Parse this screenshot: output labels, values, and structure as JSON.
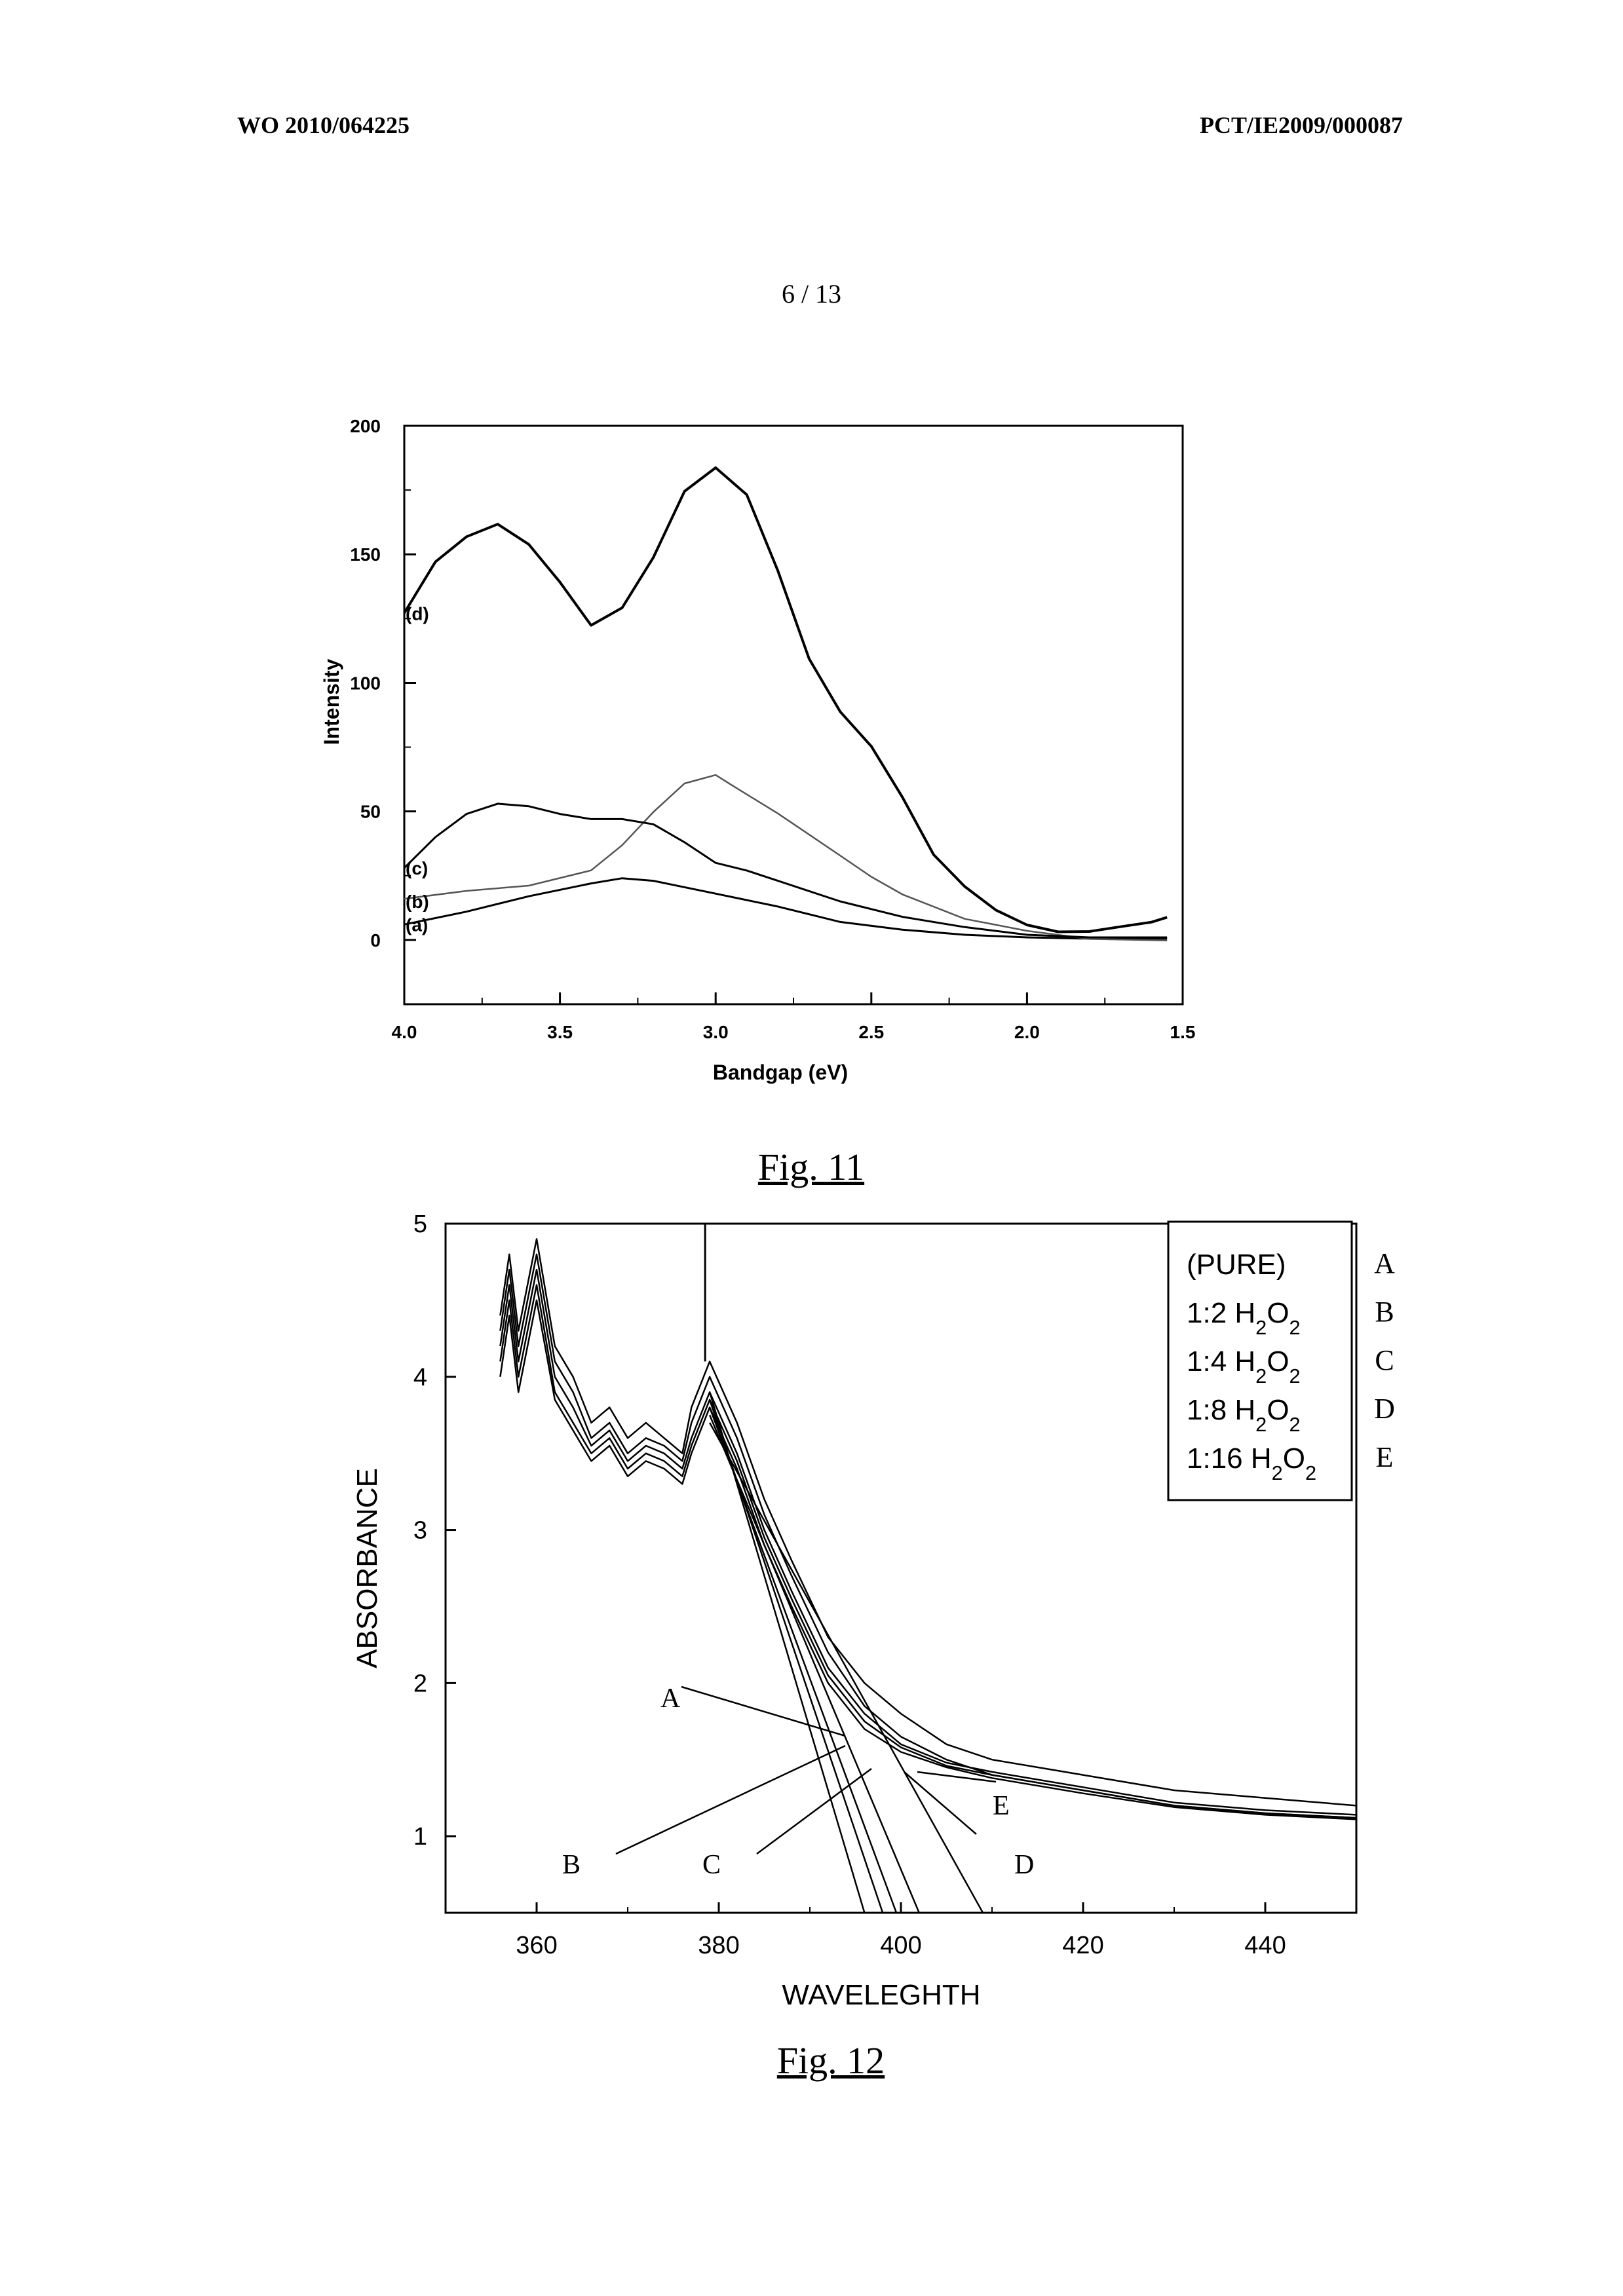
{
  "header": {
    "left": "WO 2010/064225",
    "right": "PCT/IE2009/000087",
    "sheet": "6 / 13"
  },
  "colors": {
    "ink": "#000000",
    "fig11_curve_b": "#555555"
  },
  "figures": [
    {
      "caption": "Fig. 11",
      "xlabel": "Bandgap (eV)",
      "ylabel": "Intensity",
      "xticks": [
        "4.0",
        "3.5",
        "3.0",
        "2.5",
        "2.0",
        "1.5"
      ],
      "yticks": [
        "0",
        "50",
        "100",
        "150",
        "200"
      ],
      "curve_labels": [
        "(a)",
        "(b)",
        "(c)",
        "(d)"
      ]
    },
    {
      "caption": "Fig. 12",
      "xlabel": "WAVELEGHTH",
      "ylabel": "ABSORBANCE",
      "xticks": [
        "360",
        "380",
        "400",
        "420",
        "440"
      ],
      "yticks": [
        "1",
        "2",
        "3",
        "4",
        "5"
      ],
      "legend": [
        "(PURE)",
        "1:2 H2O2",
        "1:4 H2O2",
        "1:8 H2O2",
        "1:16 H2O2"
      ],
      "legend_letters": [
        "A",
        "B",
        "C",
        "D",
        "E"
      ],
      "callouts": [
        "A",
        "B",
        "C",
        "D",
        "E"
      ]
    }
  ],
  "chart_data": [
    {
      "type": "line",
      "title": "",
      "xlabel": "Bandgap (eV)",
      "ylabel": "Intensity",
      "xlim": [
        4.0,
        1.5
      ],
      "ylim": [
        -25,
        200
      ],
      "x_reversed": true,
      "grid": false,
      "series": [
        {
          "name": "(a)",
          "x": [
            4.0,
            3.8,
            3.6,
            3.4,
            3.3,
            3.2,
            3.0,
            2.8,
            2.6,
            2.4,
            2.2,
            2.0,
            1.8,
            1.55
          ],
          "values": [
            6,
            11,
            17,
            22,
            24,
            23,
            18,
            13,
            7,
            4,
            2,
            1,
            0.5,
            0.5
          ]
        },
        {
          "name": "(b)",
          "x": [
            4.0,
            3.8,
            3.6,
            3.4,
            3.3,
            3.2,
            3.1,
            3.0,
            2.95,
            2.8,
            2.6,
            2.5,
            2.4,
            2.2,
            2.0,
            1.8,
            1.55
          ],
          "values": [
            15,
            18,
            21,
            28,
            38,
            50,
            60,
            63,
            60,
            50,
            34,
            25,
            17,
            7,
            3,
            1,
            1
          ]
        },
        {
          "name": "(c)",
          "x": [
            4.0,
            3.9,
            3.8,
            3.7,
            3.6,
            3.5,
            3.4,
            3.3,
            3.2,
            3.1,
            3.0,
            2.9,
            2.8,
            2.6,
            2.4,
            2.2,
            2.0,
            1.8,
            1.55
          ],
          "values": [
            28,
            40,
            49,
            53,
            52,
            49,
            47,
            47,
            45,
            38,
            30,
            27,
            23,
            15,
            9,
            5,
            2,
            1,
            1
          ]
        },
        {
          "name": "(d)",
          "x": [
            4.0,
            3.9,
            3.8,
            3.7,
            3.6,
            3.5,
            3.4,
            3.3,
            3.2,
            3.1,
            3.0,
            2.9,
            2.8,
            2.7,
            2.6,
            2.5,
            2.4,
            2.3,
            2.2,
            2.1,
            2.0,
            1.9,
            1.8,
            1.7,
            1.6,
            1.55
          ],
          "values": [
            127,
            148,
            158,
            162,
            153,
            138,
            122,
            130,
            150,
            175,
            183,
            172,
            143,
            110,
            90,
            76,
            55,
            32,
            20,
            12,
            7,
            4,
            3,
            4,
            6,
            9
          ]
        }
      ]
    },
    {
      "type": "line",
      "title": "",
      "xlabel": "WAVELEGHTH",
      "ylabel": "ABSORBANCE",
      "xlim": [
        350,
        450
      ],
      "ylim": [
        0.5,
        5
      ],
      "grid": false,
      "legend": "top-right",
      "series": [
        {
          "name": "A",
          "x": [
            356,
            357,
            358,
            360,
            362,
            364,
            366,
            368,
            370,
            372,
            374,
            376,
            377,
            379,
            382,
            385,
            388,
            392,
            396,
            400,
            405,
            410,
            420,
            430,
            440,
            450
          ],
          "values": [
            4.4,
            4.8,
            4.3,
            4.9,
            4.2,
            4.0,
            3.7,
            3.8,
            3.6,
            3.7,
            3.6,
            3.5,
            3.8,
            4.1,
            3.7,
            3.2,
            2.8,
            2.3,
            2.0,
            1.8,
            1.6,
            1.5,
            1.4,
            1.3,
            1.25,
            1.2
          ]
        },
        {
          "name": "B",
          "x": [
            356,
            357,
            358,
            360,
            362,
            364,
            366,
            368,
            370,
            372,
            374,
            376,
            377,
            379,
            382,
            385,
            388,
            392,
            396,
            400,
            405,
            410,
            420,
            430,
            440,
            450
          ],
          "values": [
            4.3,
            4.7,
            4.2,
            4.8,
            4.1,
            3.9,
            3.6,
            3.7,
            3.5,
            3.6,
            3.55,
            3.45,
            3.7,
            4.0,
            3.6,
            3.1,
            2.7,
            2.2,
            1.85,
            1.65,
            1.5,
            1.4,
            1.3,
            1.2,
            1.15,
            1.12
          ]
        },
        {
          "name": "C",
          "x": [
            356,
            357,
            358,
            360,
            362,
            364,
            366,
            368,
            370,
            372,
            374,
            376,
            377,
            379,
            382,
            385,
            388,
            392,
            396,
            400,
            405,
            410,
            420,
            430,
            440,
            450
          ],
          "values": [
            4.2,
            4.6,
            4.1,
            4.7,
            4.0,
            3.8,
            3.55,
            3.65,
            3.45,
            3.55,
            3.5,
            3.4,
            3.6,
            3.9,
            3.5,
            3.0,
            2.6,
            2.1,
            1.8,
            1.6,
            1.48,
            1.42,
            1.32,
            1.22,
            1.17,
            1.14
          ]
        },
        {
          "name": "D",
          "x": [
            356,
            357,
            358,
            360,
            362,
            364,
            366,
            368,
            370,
            372,
            374,
            376,
            377,
            379,
            382,
            385,
            388,
            392,
            396,
            400,
            405,
            410,
            420,
            430,
            440,
            450
          ],
          "values": [
            4.1,
            4.5,
            4.0,
            4.6,
            3.9,
            3.7,
            3.5,
            3.6,
            3.4,
            3.5,
            3.45,
            3.35,
            3.55,
            3.85,
            3.45,
            2.95,
            2.55,
            2.05,
            1.75,
            1.58,
            1.46,
            1.4,
            1.3,
            1.2,
            1.15,
            1.12
          ]
        },
        {
          "name": "E",
          "x": [
            356,
            357,
            358,
            360,
            362,
            364,
            366,
            368,
            370,
            372,
            374,
            376,
            377,
            379,
            382,
            385,
            388,
            392,
            396,
            400,
            405,
            410,
            420,
            430,
            440,
            450
          ],
          "values": [
            4.0,
            4.4,
            3.9,
            4.5,
            3.85,
            3.65,
            3.45,
            3.55,
            3.35,
            3.45,
            3.4,
            3.3,
            3.5,
            3.8,
            3.4,
            2.9,
            2.5,
            2.0,
            1.7,
            1.55,
            1.45,
            1.38,
            1.28,
            1.19,
            1.14,
            1.11
          ]
        }
      ],
      "tangent_lines": [
        {
          "name": "A",
          "x": [
            379,
            396
          ],
          "values": [
            3.9,
            0.5
          ]
        },
        {
          "name": "B",
          "x": [
            379,
            398
          ],
          "values": [
            3.85,
            0.5
          ]
        },
        {
          "name": "C",
          "x": [
            379,
            399.5
          ],
          "values": [
            3.8,
            0.5
          ]
        },
        {
          "name": "D",
          "x": [
            379,
            402
          ],
          "values": [
            3.75,
            0.5
          ]
        },
        {
          "name": "E",
          "x": [
            379,
            409
          ],
          "values": [
            3.7,
            0.5
          ]
        }
      ]
    }
  ]
}
